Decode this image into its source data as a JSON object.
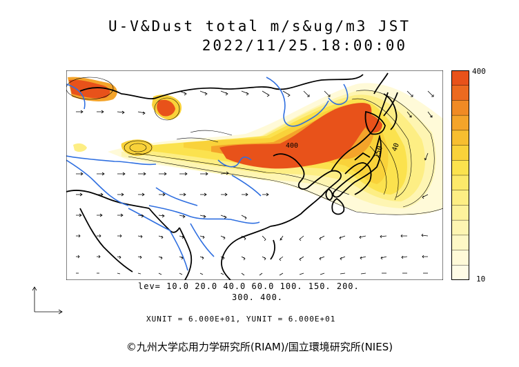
{
  "title_line1": "U-V&Dust total m/s&ug/m3 JST",
  "title_line2": "2022/11/25.18:00:00",
  "levels_line1": "lev= 10.0 20.0 40.0 60.0 100. 150. 200.",
  "levels_line2": "300. 400.",
  "unit_line": "XUNIT = 6.000E+01, YUNIT = 6.000E+01",
  "colorbar": {
    "top_label": "400",
    "bottom_label": "10",
    "colors": [
      "#e8521a",
      "#ec6a1f",
      "#f08a24",
      "#f4a42a",
      "#f7be30",
      "#f9d23a",
      "#fbe24e",
      "#fce96a",
      "#fdee84",
      "#fdf29c",
      "#fef5b2",
      "#fef8c6",
      "#fffad8",
      "#fffce6"
    ]
  },
  "contour_labels": [
    "400",
    "150",
    "40"
  ],
  "copyright": "©九州大学応用力学研究所(RIAM)/国立環境研究所(NIES)"
}
